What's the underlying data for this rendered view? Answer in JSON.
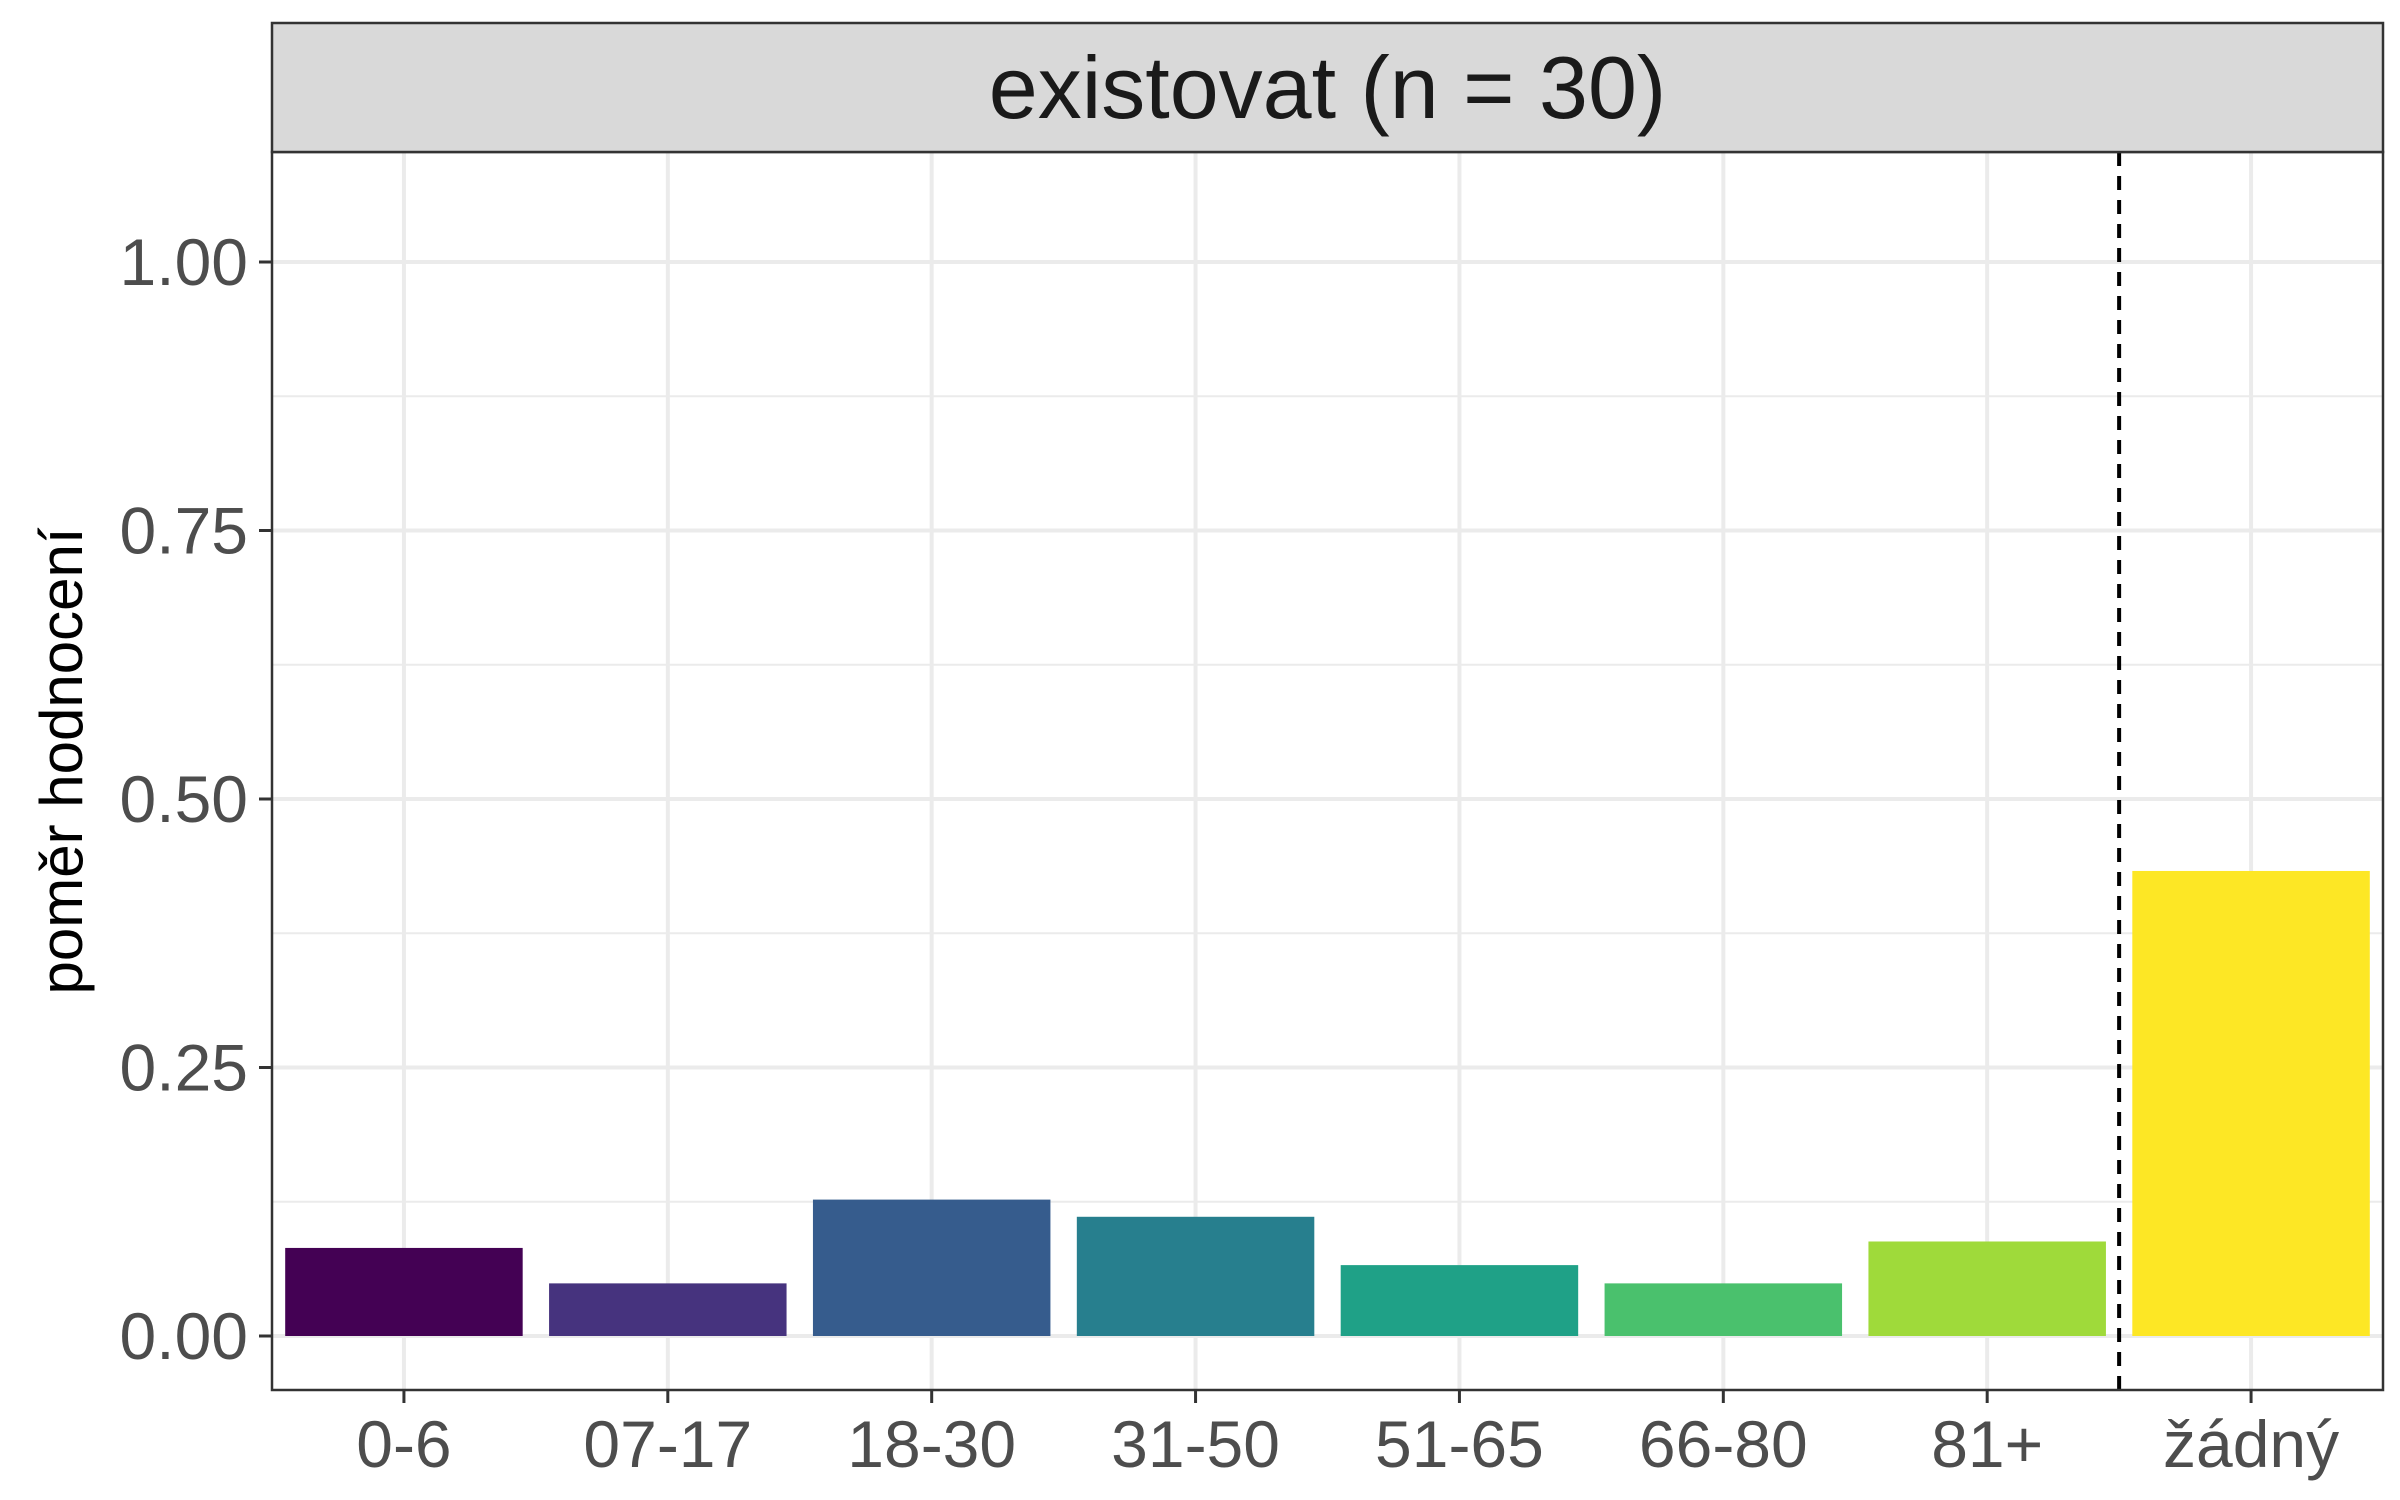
{
  "chart_data": {
    "type": "bar",
    "facet_title": "existovat (n = 30)",
    "ylabel": "poměr hodnocení",
    "xlabel": "",
    "ylim": [
      0,
      1.1
    ],
    "yticks": [
      0,
      0.25,
      0.5,
      0.75,
      1.0
    ],
    "ytick_labels": [
      "0.00",
      "0.25",
      "0.50",
      "0.75",
      "1.00"
    ],
    "grid": true,
    "categories": [
      "0-6",
      "07-17",
      "18-30",
      "31-50",
      "51-65",
      "66-80",
      "81+",
      "žádný"
    ],
    "values": [
      0.082,
      0.049,
      0.127,
      0.111,
      0.066,
      0.049,
      0.088,
      0.433
    ],
    "colors": [
      "#440154",
      "#46337E",
      "#365C8D",
      "#277F8E",
      "#1FA187",
      "#4AC16D",
      "#9FDA3A",
      "#FDE725"
    ],
    "vline_after_category": "81+",
    "vline_style": "dashed"
  }
}
